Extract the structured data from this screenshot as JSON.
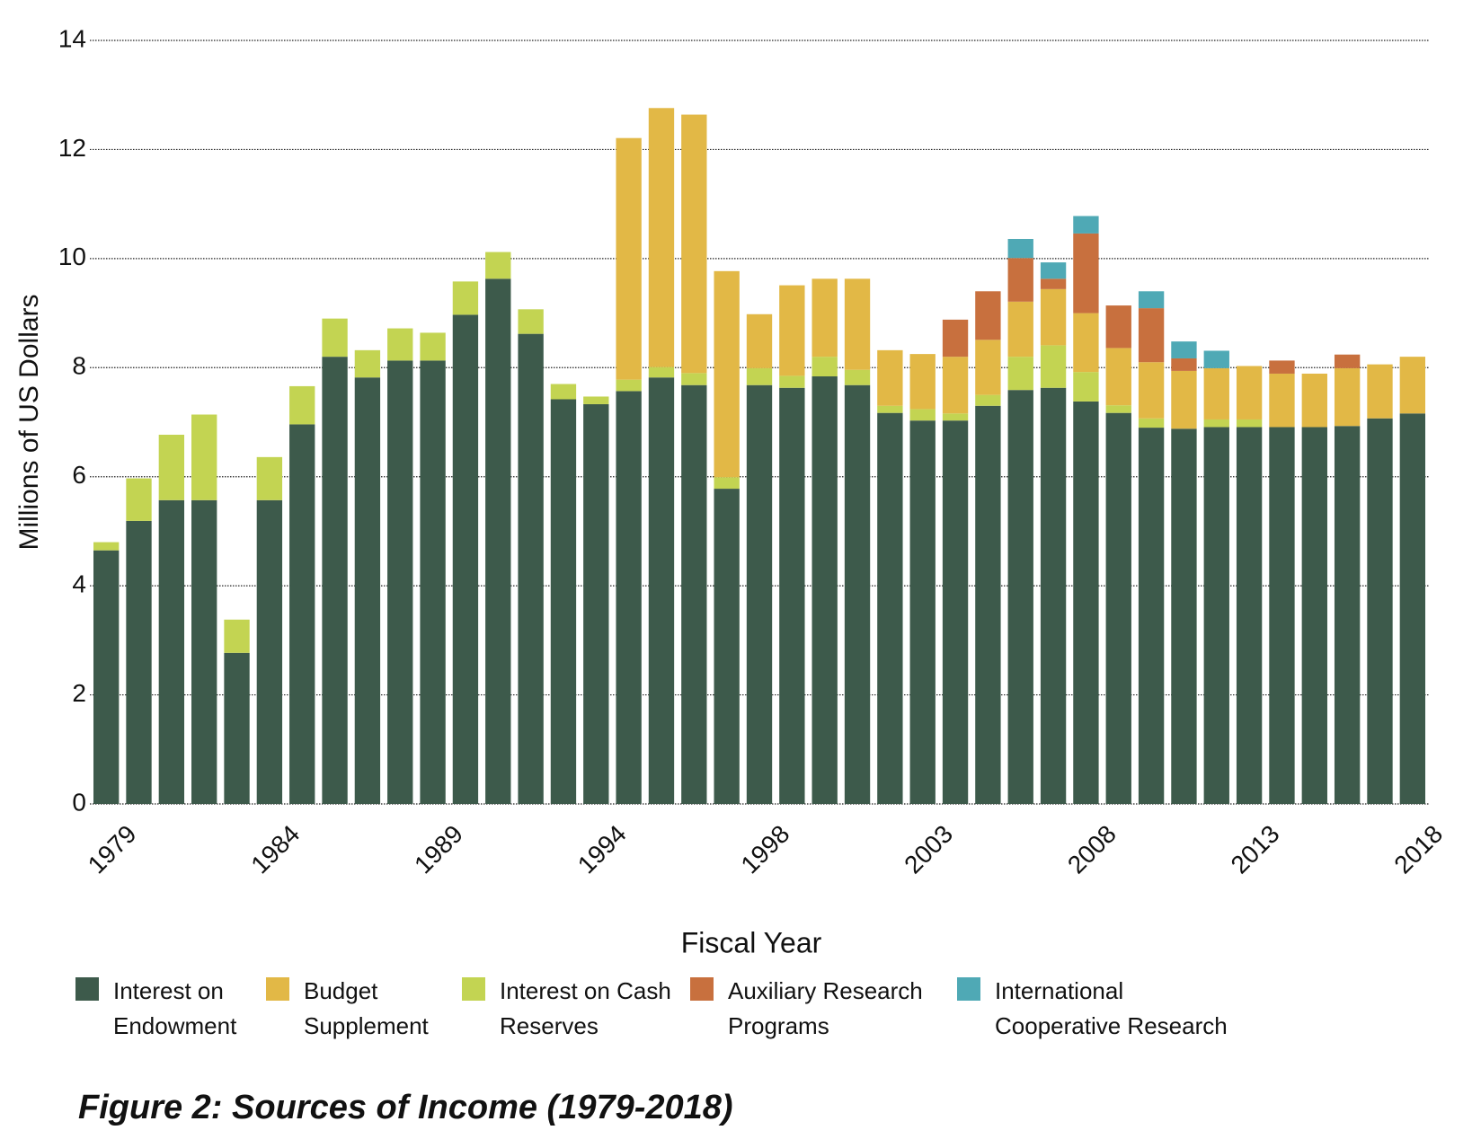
{
  "chart_data": {
    "type": "stacked-bar",
    "title": "Figure 2: Sources of Income (1979-2018)",
    "x_label": "Fiscal Year",
    "y_label": "Millions of US Dollars",
    "categories": [
      "1979",
      null,
      null,
      null,
      null,
      "1984",
      null,
      null,
      null,
      null,
      "1989",
      null,
      null,
      null,
      null,
      "1994",
      null,
      null,
      null,
      null,
      "1998",
      null,
      null,
      null,
      null,
      "2003",
      null,
      null,
      null,
      null,
      "2008",
      null,
      null,
      null,
      null,
      "2013",
      null,
      null,
      null,
      null,
      "2018"
    ],
    "series": [
      {
        "name": "Interest on Endowment",
        "color": "#3d5a4b",
        "values": [
          4.65,
          5.19,
          5.57,
          5.57,
          2.77,
          5.57,
          6.96,
          8.2,
          7.82,
          8.13,
          8.13,
          8.97,
          9.63,
          8.62,
          7.42,
          7.33,
          7.57,
          7.82,
          7.68,
          5.78,
          7.68,
          7.63,
          7.84,
          7.68,
          7.17,
          7.03,
          7.03,
          7.3,
          7.59,
          7.63,
          7.38,
          7.17,
          6.9,
          6.88,
          6.91,
          6.91,
          6.91,
          6.91,
          6.93,
          7.07,
          7.16
        ]
      },
      {
        "name": "Budget Supplement",
        "color": "#e2b846",
        "values": [
          0,
          0,
          0,
          0,
          0,
          0,
          0,
          0,
          0,
          0,
          0,
          0,
          0,
          0,
          0,
          0,
          4.43,
          4.75,
          4.74,
          3.78,
          0.99,
          1.66,
          1.43,
          1.67,
          1.02,
          1.01,
          1.04,
          1.01,
          1.01,
          1.03,
          1.08,
          1.05,
          1.03,
          1.06,
          0.94,
          0.98,
          0.98,
          0.98,
          1.06,
          0.99,
          1.04
        ]
      },
      {
        "name": "Interest on Cash Reserves",
        "color": "#c3d452",
        "values": [
          0.15,
          0.78,
          1.2,
          1.57,
          0.61,
          0.79,
          0.7,
          0.7,
          0.5,
          0.59,
          0.51,
          0.61,
          0.49,
          0.45,
          0.28,
          0.14,
          0.21,
          0.19,
          0.22,
          0.21,
          0.31,
          0.22,
          0.36,
          0.28,
          0.13,
          0.21,
          0.13,
          0.2,
          0.61,
          0.78,
          0.54,
          0.14,
          0.17,
          0,
          0.14,
          0.14,
          0,
          0,
          0,
          0,
          0
        ]
      },
      {
        "name": "Auxiliary Research Programs",
        "color": "#c8703e",
        "values": [
          0,
          0,
          0,
          0,
          0,
          0,
          0,
          0,
          0,
          0,
          0,
          0,
          0,
          0,
          0,
          0,
          0,
          0,
          0,
          0,
          0,
          0,
          0,
          0,
          0,
          0,
          0.68,
          0.89,
          0.8,
          0.19,
          1.46,
          0.78,
          0.99,
          0.23,
          0,
          0,
          0.24,
          0,
          0.25,
          0,
          0
        ]
      },
      {
        "name": "International Cooperative Research",
        "color": "#4fa9b5",
        "values": [
          0,
          0,
          0,
          0,
          0,
          0,
          0,
          0,
          0,
          0,
          0,
          0,
          0,
          0,
          0,
          0,
          0,
          0,
          0,
          0,
          0,
          0,
          0,
          0,
          0,
          0,
          0,
          0,
          0.35,
          0.3,
          0.32,
          0,
          0.31,
          0.31,
          0.32,
          0,
          0,
          0,
          0,
          0,
          0
        ]
      }
    ],
    "ylim": [
      0,
      14
    ],
    "yticks": [
      0,
      2,
      4,
      6,
      8,
      10,
      12,
      14
    ],
    "grid": true
  }
}
